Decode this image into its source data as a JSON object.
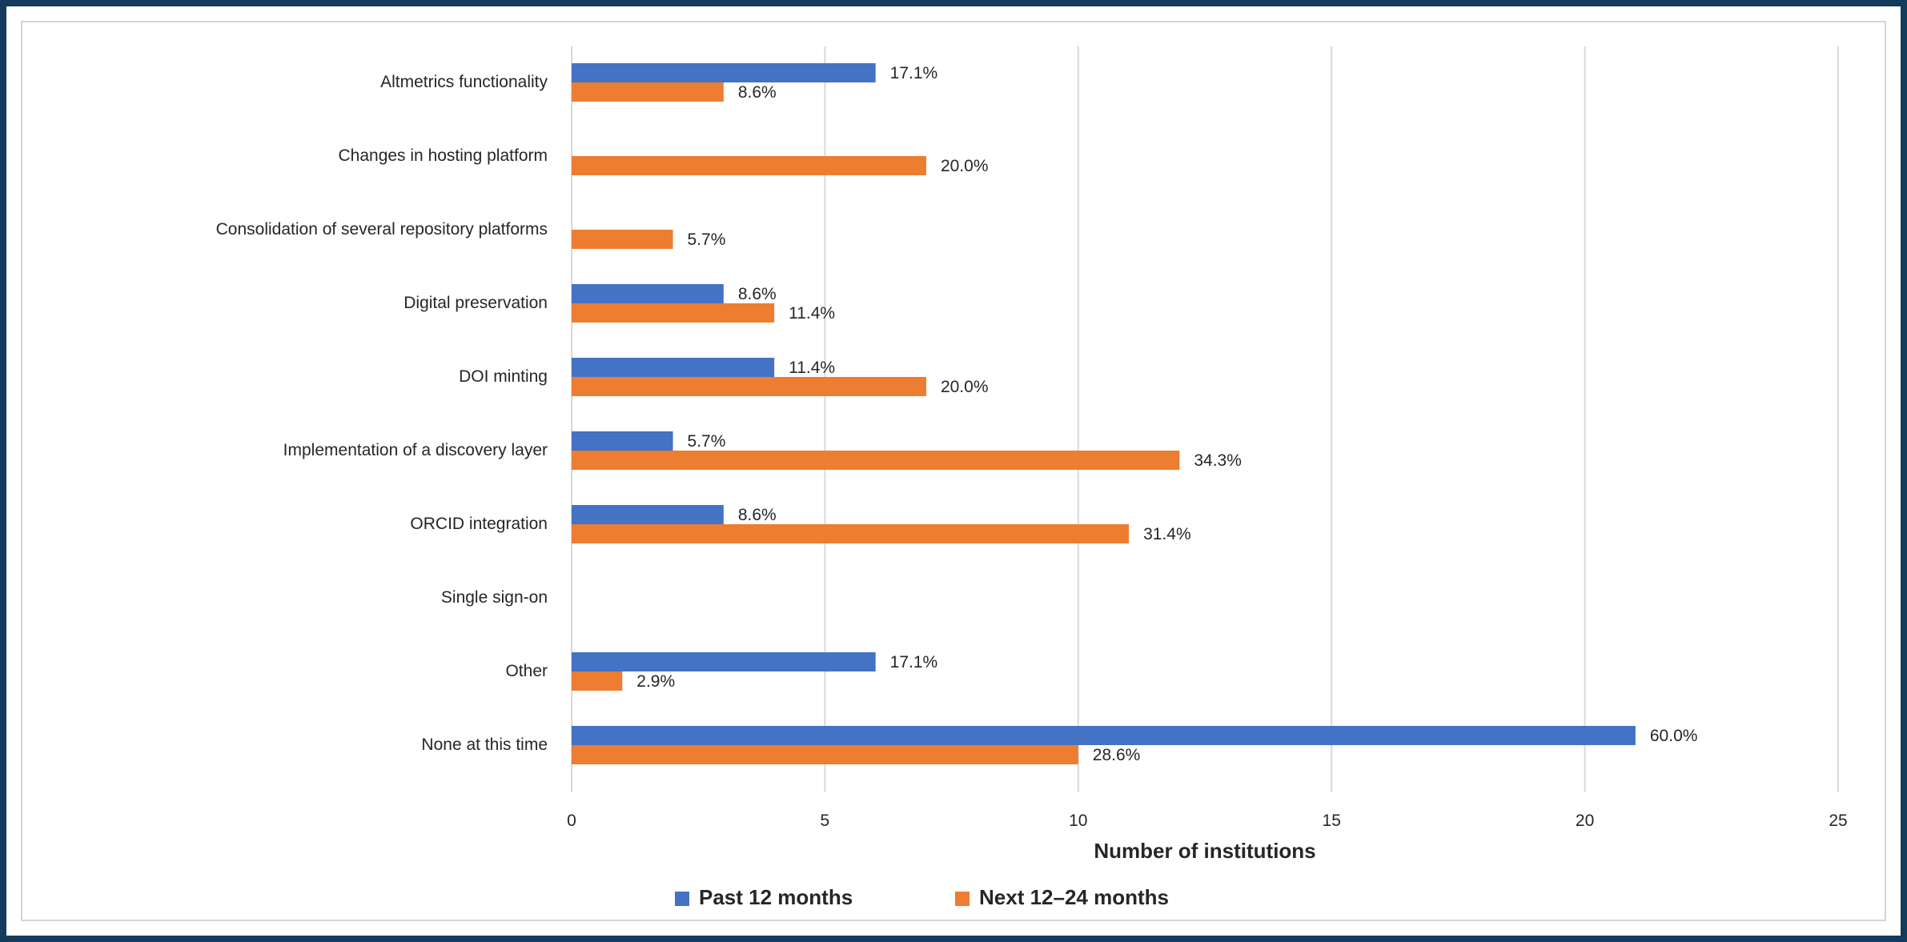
{
  "chart_data": {
    "type": "bar",
    "orientation": "horizontal",
    "title": "",
    "xlabel": "Number of institutions",
    "ylabel": "",
    "xlim": [
      0,
      25
    ],
    "x_ticks": [
      "0",
      "5",
      "10",
      "15",
      "20",
      "25"
    ],
    "grid": true,
    "legend_position": "bottom",
    "categories": [
      "Altmetrics functionality",
      "Changes in hosting platform",
      "Consolidation of several repository platforms",
      "Digital preservation",
      "DOI minting",
      "Implementation of a discovery layer",
      "ORCID integration",
      "Single sign-on",
      "Other",
      "None at this time"
    ],
    "series": [
      {
        "name": "Past 12 months",
        "color": "#4472c4",
        "values": [
          6,
          0,
          0,
          3,
          4,
          2,
          3,
          0,
          6,
          21
        ],
        "labels": [
          "17.1%",
          "",
          "",
          "8.6%",
          "11.4%",
          "5.7%",
          "8.6%",
          "",
          "17.1%",
          "60.0%"
        ]
      },
      {
        "name": "Next 12–24 months",
        "color": "#ed7d31",
        "values": [
          3,
          7,
          2,
          4,
          7,
          12,
          11,
          0,
          1,
          10
        ],
        "labels": [
          "8.6%",
          "20.0%",
          "5.7%",
          "11.4%",
          "20.0%",
          "34.3%",
          "31.4%",
          "",
          "2.9%",
          "28.6%"
        ]
      }
    ]
  }
}
